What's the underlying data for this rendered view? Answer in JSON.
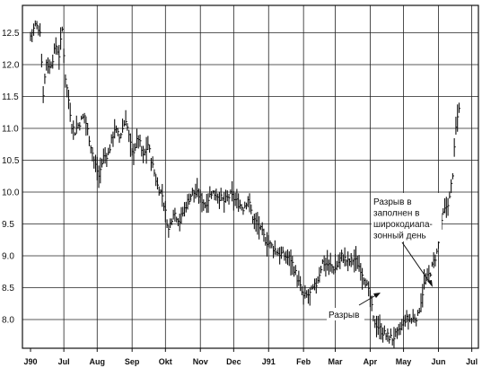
{
  "chart_data": {
    "type": "bar",
    "subtype": "ohlc",
    "title": "",
    "xlabel": "",
    "ylabel": "",
    "ylim": [
      7.5,
      12.85
    ],
    "grid": true,
    "y_ticks": [
      "8.0",
      "8.5",
      "9.0",
      "9.5",
      "10.0",
      "10.5",
      "11.0",
      "11.5",
      "12.0",
      "12.5"
    ],
    "x_ticks": [
      "J90",
      "Jul",
      "Aug",
      "Sep",
      "Okt",
      "Nov",
      "Dec",
      "J91",
      "Feb",
      "Mar",
      "Apr",
      "May",
      "Jun",
      "Jul"
    ],
    "month_index": [
      0,
      21,
      42,
      64,
      85,
      107,
      128,
      150,
      172,
      192,
      214,
      235,
      257,
      278
    ],
    "series": [
      {
        "keys": [
          [
            0,
            12.45
          ],
          [
            3,
            12.62
          ],
          [
            6,
            12.55
          ],
          [
            8,
            11.55
          ],
          [
            10,
            12.05
          ],
          [
            12,
            11.95
          ],
          [
            14,
            12.1
          ],
          [
            16,
            12.3
          ],
          [
            18,
            12.15
          ],
          [
            20,
            12.55
          ],
          [
            22,
            11.8
          ],
          [
            24,
            11.45
          ],
          [
            26,
            11.05
          ],
          [
            28,
            10.95
          ],
          [
            30,
            11.05
          ],
          [
            34,
            11.2
          ],
          [
            37,
            10.85
          ],
          [
            40,
            10.5
          ],
          [
            43,
            10.25
          ],
          [
            46,
            10.55
          ],
          [
            49,
            10.6
          ],
          [
            53,
            11.0
          ],
          [
            56,
            10.85
          ],
          [
            60,
            11.15
          ],
          [
            64,
            10.6
          ],
          [
            68,
            10.85
          ],
          [
            71,
            10.55
          ],
          [
            74,
            10.75
          ],
          [
            77,
            10.4
          ],
          [
            80,
            10.1
          ],
          [
            83,
            9.95
          ],
          [
            87,
            9.4
          ],
          [
            90,
            9.7
          ],
          [
            94,
            9.55
          ],
          [
            98,
            9.8
          ],
          [
            102,
            10.0
          ],
          [
            106,
            9.95
          ],
          [
            110,
            9.8
          ],
          [
            114,
            10.0
          ],
          [
            118,
            9.95
          ],
          [
            122,
            9.85
          ],
          [
            126,
            9.95
          ],
          [
            130,
            9.85
          ],
          [
            134,
            9.75
          ],
          [
            137,
            9.9
          ],
          [
            140,
            9.6
          ],
          [
            144,
            9.45
          ],
          [
            148,
            9.25
          ],
          [
            152,
            9.15
          ],
          [
            156,
            9.05
          ],
          [
            160,
            9.0
          ],
          [
            164,
            8.95
          ],
          [
            168,
            8.65
          ],
          [
            172,
            8.35
          ],
          [
            176,
            8.4
          ],
          [
            180,
            8.55
          ],
          [
            184,
            8.9
          ],
          [
            188,
            8.85
          ],
          [
            192,
            8.8
          ],
          [
            196,
            9.0
          ],
          [
            200,
            8.9
          ],
          [
            204,
            8.95
          ],
          [
            208,
            8.8
          ],
          [
            211,
            8.6
          ],
          [
            214,
            8.35
          ],
          [
            216,
            8.0
          ],
          [
            220,
            7.85
          ],
          [
            224,
            7.75
          ],
          [
            228,
            7.7
          ],
          [
            232,
            7.8
          ],
          [
            236,
            8.0
          ],
          [
            240,
            8.0
          ],
          [
            244,
            8.05
          ],
          [
            248,
            8.55
          ],
          [
            252,
            8.75
          ],
          [
            256,
            9.05
          ],
          [
            260,
            9.65
          ],
          [
            264,
            9.9
          ],
          [
            266,
            10.3
          ],
          [
            268,
            11.0
          ],
          [
            270,
            11.35
          ]
        ]
      }
    ],
    "annotations": [
      {
        "text": "Разрыв"
      },
      {
        "lines": [
          "Разрыв в",
          "заполнен в",
          "широкодиапа-",
          "зонный день"
        ]
      }
    ]
  }
}
